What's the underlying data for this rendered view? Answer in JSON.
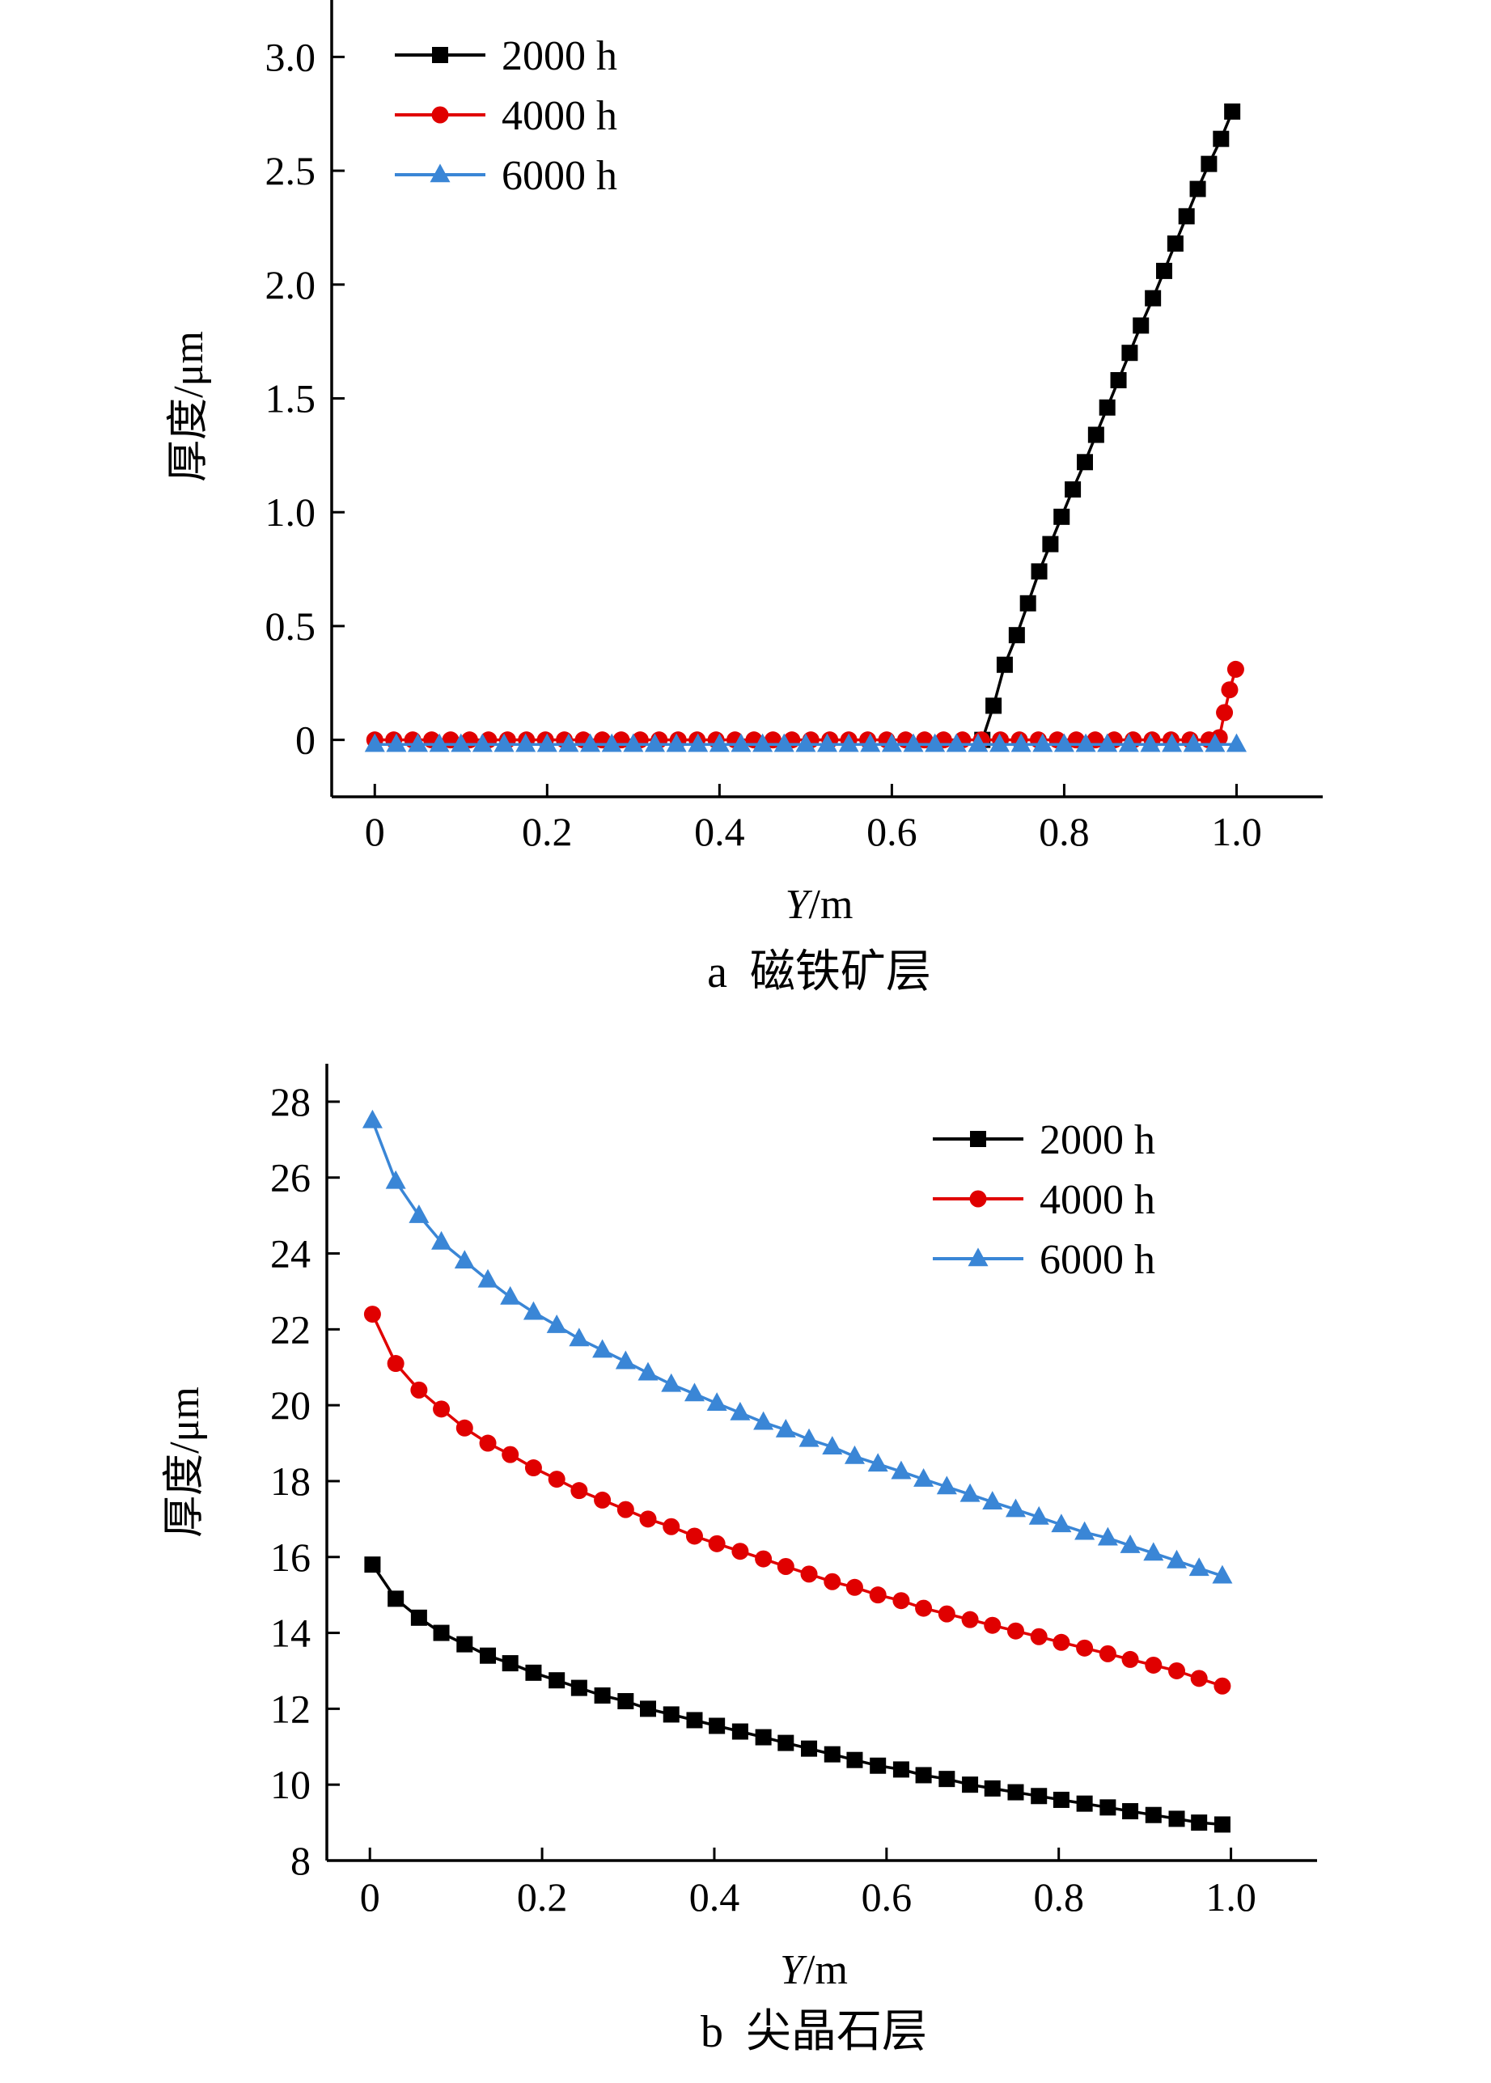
{
  "chart_data": [
    {
      "id": "a",
      "type": "line",
      "caption_letter": "a",
      "caption_text": "磁铁矿层",
      "xlabel": "Y/m",
      "xlabel_var": "Y",
      "xlabel_unit": "/m",
      "ylabel": "厚度/μm",
      "xlim": [
        -0.05,
        1.1
      ],
      "ylim": [
        -0.25,
        3.25
      ],
      "xticks": [
        0,
        0.2,
        0.4,
        0.6,
        0.8,
        1.0
      ],
      "xtick_labels": [
        "0",
        "0.2",
        "0.4",
        "0.6",
        "0.8",
        "1.0"
      ],
      "yticks": [
        0,
        0.5,
        1.0,
        1.5,
        2.0,
        2.5,
        3.0
      ],
      "ytick_labels": [
        "0",
        "0.5",
        "1.0",
        "1.5",
        "2.0",
        "2.5",
        "3.0"
      ],
      "legend_position": "top-left",
      "series": [
        {
          "name": "2000 h",
          "color": "#000000",
          "marker": "square",
          "x": [
            0.705,
            0.718,
            0.731,
            0.745,
            0.758,
            0.771,
            0.784,
            0.797,
            0.81,
            0.824,
            0.837,
            0.85,
            0.863,
            0.876,
            0.889,
            0.903,
            0.916,
            0.929,
            0.942,
            0.955,
            0.968,
            0.982,
            0.995
          ],
          "y": [
            0.0,
            0.15,
            0.33,
            0.46,
            0.6,
            0.74,
            0.86,
            0.98,
            1.1,
            1.22,
            1.34,
            1.46,
            1.58,
            1.7,
            1.82,
            1.94,
            2.06,
            2.18,
            2.3,
            2.42,
            2.53,
            2.64,
            2.76
          ]
        },
        {
          "name": "4000 h",
          "color": "#e00000",
          "marker": "circle",
          "x": [
            0.0,
            0.022,
            0.044,
            0.066,
            0.088,
            0.11,
            0.132,
            0.154,
            0.176,
            0.198,
            0.22,
            0.242,
            0.264,
            0.286,
            0.308,
            0.33,
            0.352,
            0.374,
            0.396,
            0.418,
            0.44,
            0.462,
            0.484,
            0.506,
            0.528,
            0.55,
            0.572,
            0.594,
            0.616,
            0.638,
            0.66,
            0.682,
            0.704,
            0.726,
            0.748,
            0.77,
            0.792,
            0.814,
            0.836,
            0.858,
            0.88,
            0.902,
            0.924,
            0.946,
            0.968,
            0.98,
            0.986,
            0.992,
            0.999
          ],
          "y": [
            0.0,
            0.0,
            0.0,
            0.0,
            0.0,
            0.0,
            0.0,
            0.0,
            0.0,
            0.0,
            0.0,
            0.0,
            0.0,
            0.0,
            0.0,
            0.0,
            0.0,
            0.0,
            0.0,
            0.0,
            0.0,
            0.0,
            0.0,
            0.0,
            0.0,
            0.0,
            0.0,
            0.0,
            0.0,
            0.0,
            0.0,
            0.0,
            0.0,
            0.0,
            0.0,
            0.0,
            0.0,
            0.0,
            0.0,
            0.0,
            0.0,
            0.0,
            0.0,
            0.0,
            0.0,
            0.01,
            0.12,
            0.22,
            0.31
          ]
        },
        {
          "name": "6000 h",
          "color": "#3a86d6",
          "marker": "triangle",
          "x": [
            0.0,
            0.025,
            0.05,
            0.075,
            0.1,
            0.125,
            0.15,
            0.175,
            0.2,
            0.225,
            0.25,
            0.275,
            0.3,
            0.325,
            0.35,
            0.375,
            0.4,
            0.425,
            0.45,
            0.475,
            0.5,
            0.525,
            0.55,
            0.575,
            0.6,
            0.625,
            0.65,
            0.675,
            0.7,
            0.725,
            0.75,
            0.775,
            0.8,
            0.825,
            0.85,
            0.875,
            0.9,
            0.925,
            0.95,
            0.975,
            1.0
          ],
          "y": [
            -0.02,
            -0.02,
            -0.02,
            -0.02,
            -0.02,
            -0.02,
            -0.02,
            -0.02,
            -0.02,
            -0.02,
            -0.02,
            -0.02,
            -0.02,
            -0.02,
            -0.02,
            -0.02,
            -0.02,
            -0.02,
            -0.02,
            -0.02,
            -0.02,
            -0.02,
            -0.02,
            -0.02,
            -0.02,
            -0.02,
            -0.02,
            -0.02,
            -0.02,
            -0.02,
            -0.02,
            -0.02,
            -0.02,
            -0.02,
            -0.02,
            -0.02,
            -0.02,
            -0.02,
            -0.02,
            -0.02,
            -0.02
          ]
        }
      ]
    },
    {
      "id": "b",
      "type": "line",
      "caption_letter": "b",
      "caption_text": "尖晶石层",
      "xlabel": "Y/m",
      "xlabel_var": "Y",
      "xlabel_unit": "/m",
      "ylabel": "厚度/μm",
      "xlim": [
        -0.05,
        1.1
      ],
      "ylim": [
        8,
        29
      ],
      "xticks": [
        0,
        0.2,
        0.4,
        0.6,
        0.8,
        1.0
      ],
      "xtick_labels": [
        "0",
        "0.2",
        "0.4",
        "0.6",
        "0.8",
        "1.0"
      ],
      "yticks": [
        8,
        10,
        12,
        14,
        16,
        18,
        20,
        22,
        24,
        26,
        28
      ],
      "ytick_labels": [
        "8",
        "10",
        "12",
        "14",
        "16",
        "18",
        "20",
        "22",
        "24",
        "26",
        "28"
      ],
      "legend_position": "top-right",
      "series": [
        {
          "name": "2000 h",
          "color": "#000000",
          "marker": "square",
          "x": [
            0.003,
            0.03,
            0.057,
            0.083,
            0.11,
            0.137,
            0.163,
            0.19,
            0.217,
            0.243,
            0.27,
            0.297,
            0.323,
            0.35,
            0.377,
            0.403,
            0.43,
            0.457,
            0.483,
            0.51,
            0.537,
            0.563,
            0.59,
            0.617,
            0.643,
            0.67,
            0.697,
            0.723,
            0.75,
            0.777,
            0.803,
            0.83,
            0.857,
            0.883,
            0.91,
            0.937,
            0.963,
            0.99
          ],
          "y": [
            15.8,
            14.9,
            14.4,
            14.0,
            13.7,
            13.4,
            13.2,
            12.95,
            12.75,
            12.55,
            12.35,
            12.2,
            12.0,
            11.85,
            11.7,
            11.55,
            11.4,
            11.25,
            11.1,
            10.95,
            10.8,
            10.65,
            10.5,
            10.4,
            10.25,
            10.15,
            10.0,
            9.9,
            9.8,
            9.7,
            9.6,
            9.5,
            9.4,
            9.3,
            9.2,
            9.1,
            9.0,
            8.95
          ]
        },
        {
          "name": "4000 h",
          "color": "#e00000",
          "marker": "circle",
          "x": [
            0.003,
            0.03,
            0.057,
            0.083,
            0.11,
            0.137,
            0.163,
            0.19,
            0.217,
            0.243,
            0.27,
            0.297,
            0.323,
            0.35,
            0.377,
            0.403,
            0.43,
            0.457,
            0.483,
            0.51,
            0.537,
            0.563,
            0.59,
            0.617,
            0.643,
            0.67,
            0.697,
            0.723,
            0.75,
            0.777,
            0.803,
            0.83,
            0.857,
            0.883,
            0.91,
            0.937,
            0.963,
            0.99
          ],
          "y": [
            22.4,
            21.1,
            20.4,
            19.9,
            19.4,
            19.0,
            18.7,
            18.35,
            18.05,
            17.75,
            17.5,
            17.25,
            17.0,
            16.8,
            16.55,
            16.35,
            16.15,
            15.95,
            15.75,
            15.55,
            15.35,
            15.2,
            15.0,
            14.85,
            14.65,
            14.5,
            14.35,
            14.2,
            14.05,
            13.9,
            13.75,
            13.6,
            13.45,
            13.3,
            13.15,
            13.0,
            12.8,
            12.6
          ]
        },
        {
          "name": "6000 h",
          "color": "#3a86d6",
          "marker": "triangle",
          "x": [
            0.003,
            0.03,
            0.057,
            0.083,
            0.11,
            0.137,
            0.163,
            0.19,
            0.217,
            0.243,
            0.27,
            0.297,
            0.323,
            0.35,
            0.377,
            0.403,
            0.43,
            0.457,
            0.483,
            0.51,
            0.537,
            0.563,
            0.59,
            0.617,
            0.643,
            0.67,
            0.697,
            0.723,
            0.75,
            0.777,
            0.803,
            0.83,
            0.857,
            0.883,
            0.91,
            0.937,
            0.963,
            0.99
          ],
          "y": [
            27.5,
            25.9,
            25.0,
            24.3,
            23.8,
            23.3,
            22.85,
            22.45,
            22.1,
            21.75,
            21.45,
            21.15,
            20.85,
            20.55,
            20.3,
            20.05,
            19.8,
            19.55,
            19.35,
            19.1,
            18.9,
            18.65,
            18.45,
            18.25,
            18.05,
            17.85,
            17.65,
            17.45,
            17.25,
            17.05,
            16.85,
            16.65,
            16.5,
            16.3,
            16.1,
            15.9,
            15.7,
            15.5
          ]
        }
      ]
    }
  ]
}
